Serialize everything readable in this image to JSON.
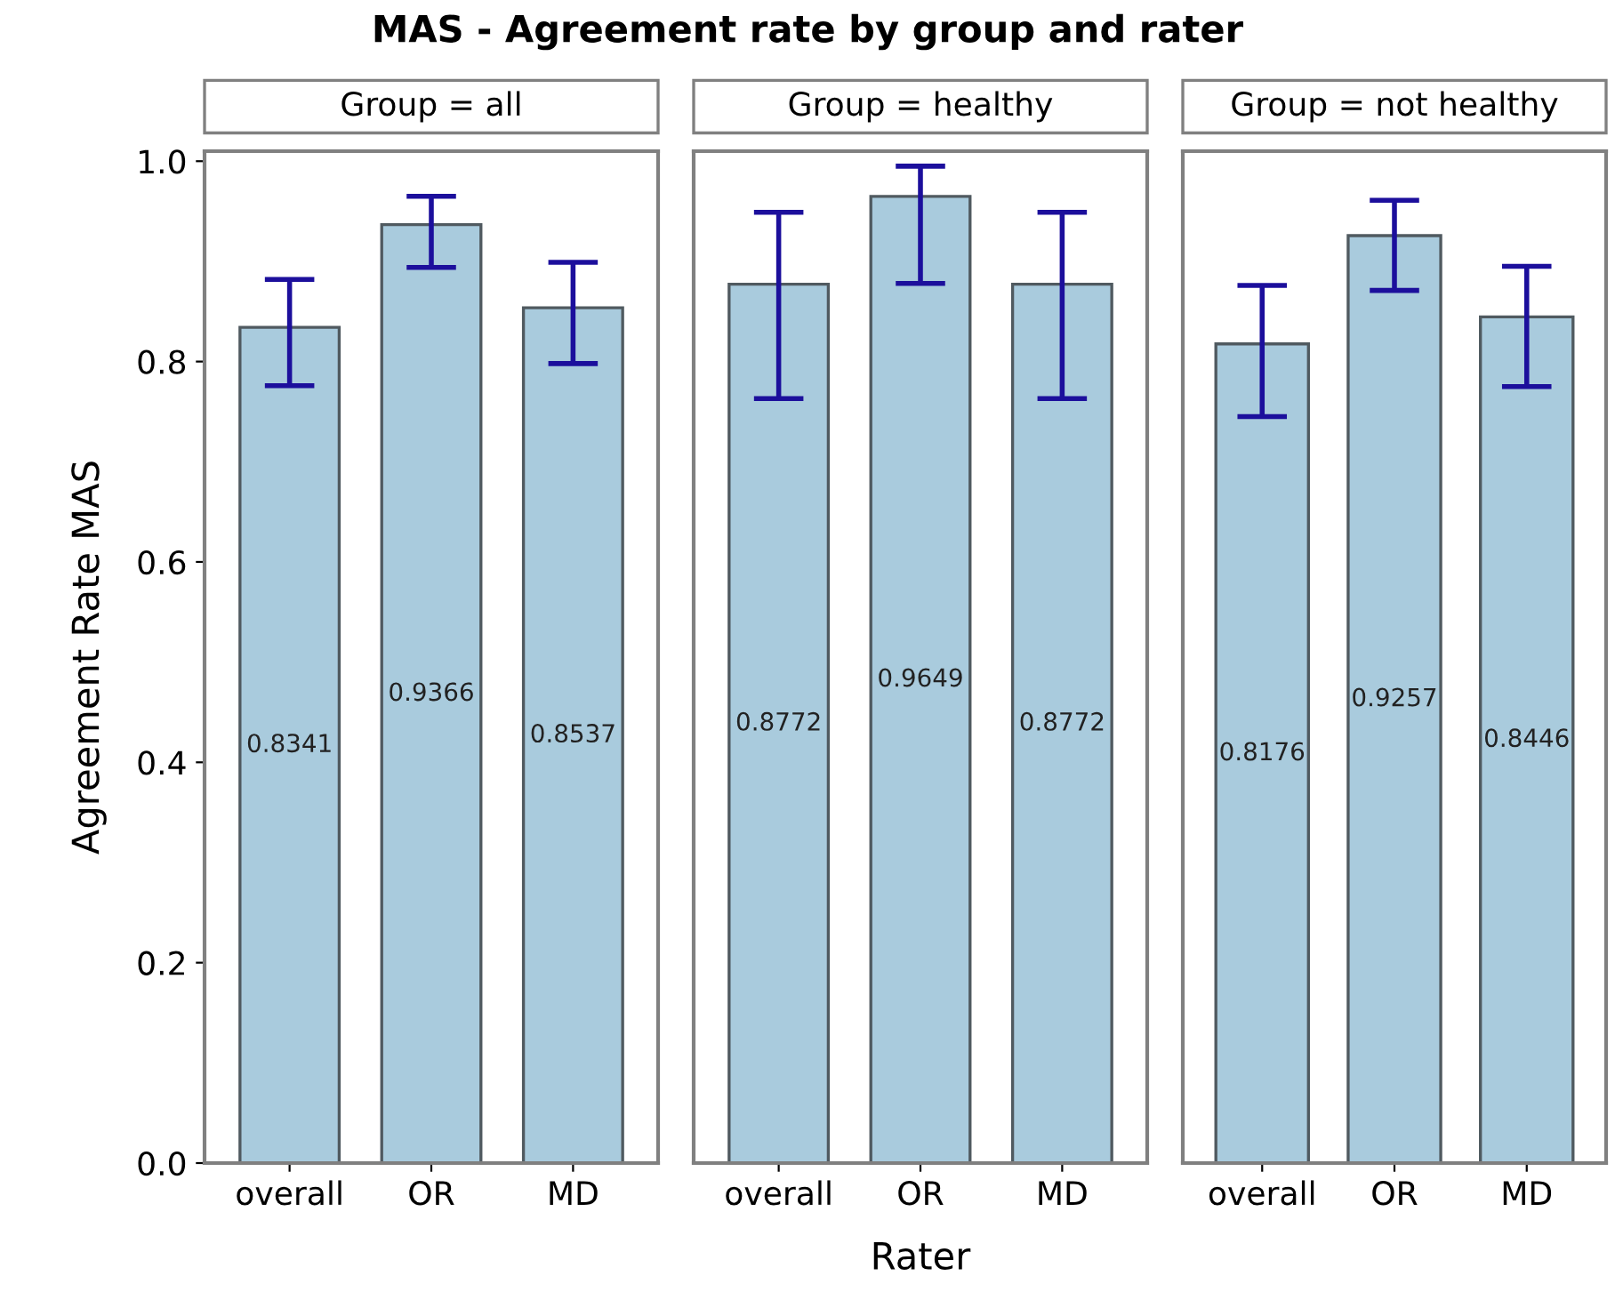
{
  "chart_data": [
    {
      "type": "bar",
      "title": "MAS - Agreement rate by group and rater",
      "subtitle": "Group = all",
      "ylabel": "Agreement Rate MAS",
      "categories": [
        "overall",
        "OR",
        "MD"
      ],
      "values": [
        0.8341,
        0.9366,
        0.8537
      ],
      "errors": [
        [
          0.776,
          0.882
        ],
        [
          0.894,
          0.965
        ],
        [
          0.798,
          0.899
        ]
      ],
      "color": "#a9cbdd",
      "ylim": [
        0,
        1.01
      ],
      "yticks": [
        {
          "value": 0,
          "label": "0.0"
        },
        0.2,
        0.4,
        0.6,
        0.8,
        {
          "value": 1,
          "label": "1.0"
        }
      ],
      "data_labels": true,
      "grid": false
    },
    {
      "type": "bar",
      "subtitle": "Group = healthy",
      "xlabel": "Rater",
      "categories": [
        "overall",
        "OR",
        "MD"
      ],
      "values": [
        0.8772,
        0.9649,
        0.8772
      ],
      "errors": [
        [
          0.763,
          0.949
        ],
        [
          0.878,
          0.995
        ],
        [
          0.763,
          0.949
        ]
      ],
      "color": "#a9cbdd",
      "ylim": [
        0,
        1.01
      ],
      "data_labels": true,
      "grid": false,
      "tick_labels": "x"
    },
    {
      "type": "bar",
      "subtitle": "Group = not healthy",
      "categories": [
        "overall",
        "OR",
        "MD"
      ],
      "values": [
        0.8176,
        0.9257,
        0.8446
      ],
      "errors": [
        [
          0.745,
          0.876
        ],
        [
          0.871,
          0.961
        ],
        [
          0.775,
          0.895
        ]
      ],
      "color": "#a9cbdd",
      "ylim": [
        0,
        1.01
      ],
      "data_labels": true,
      "grid": false,
      "tick_labels": "x"
    }
  ]
}
